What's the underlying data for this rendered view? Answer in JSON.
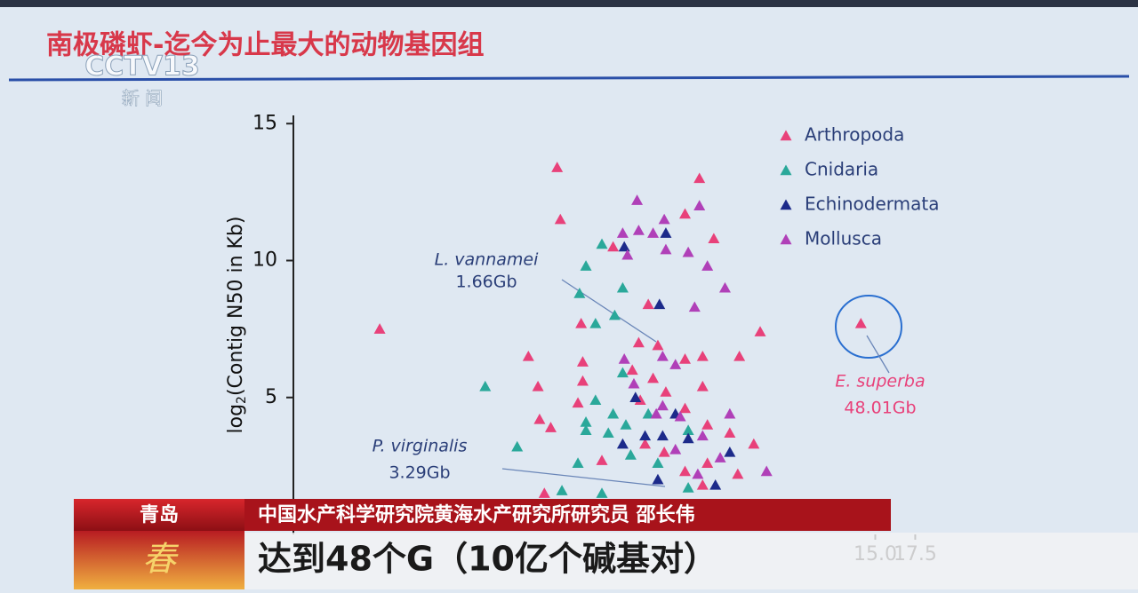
{
  "logo": {
    "brand": "CCTV13",
    "channel": "新 闻"
  },
  "slide": {
    "title": "南极磷虾-迄今为止最大的动物基因组"
  },
  "chart_data": {
    "type": "scatter",
    "y_label": {
      "base": "log",
      "sub": "2",
      "rest": "(Contig N50 in Kb)"
    },
    "ylim": [
      0,
      15.3
    ],
    "yticks": [
      5,
      10,
      15
    ],
    "xlim": [
      -21.4,
      19.2
    ],
    "xticks": [
      {
        "value": 15,
        "label": "15.0"
      },
      {
        "value": 17.5,
        "label": "17.5"
      }
    ],
    "annotations": [
      {
        "name": "L. vannamei",
        "size": "1.66Gb"
      },
      {
        "name": "P. virginalis",
        "size": "3.29Gb"
      },
      {
        "name": "E. superba",
        "size": "48.01Gb"
      }
    ],
    "series": [
      {
        "name": "Arthropoda",
        "color": "#e8417a",
        "x": [
          -4.9,
          -4.7,
          -16.0,
          4.0,
          3.1,
          4.9,
          -1.4,
          7.8,
          14.1,
          6.5,
          -6.7,
          -6.1,
          -3.3,
          -3.4,
          0.2,
          1.4,
          0.8,
          3.1,
          4.2,
          -3.3,
          -6.0,
          -5.3,
          -3.6,
          -0.2,
          1.1,
          1.9,
          4.2,
          3.1,
          4.5,
          5.9,
          7.4,
          -2.1,
          1.8,
          3.1,
          6.4,
          4.5,
          0.3,
          0.6,
          -5.7,
          4.2
        ],
        "values": [
          13.4,
          11.5,
          7.5,
          13.0,
          11.7,
          10.8,
          10.5,
          7.4,
          7.7,
          6.5,
          6.5,
          5.4,
          6.3,
          7.7,
          7.0,
          6.9,
          8.4,
          6.4,
          6.5,
          5.6,
          4.2,
          3.9,
          4.8,
          6.0,
          5.7,
          5.2,
          5.4,
          4.6,
          4.0,
          3.7,
          3.3,
          2.7,
          3.0,
          2.3,
          2.2,
          2.6,
          4.9,
          3.3,
          1.5,
          1.8
        ]
      },
      {
        "name": "Cnidaria",
        "color": "#2aa89a",
        "x": [
          -9.4,
          -2.1,
          -3.1,
          -0.8,
          -3.5,
          -1.3,
          -2.5,
          -7.4,
          -3.1,
          -2.5,
          -1.4,
          -0.8,
          -0.6,
          -1.7,
          -3.1,
          -0.3,
          -3.6,
          0.8,
          3.3,
          -4.6,
          -2.1,
          1.4,
          3.3
        ],
        "values": [
          5.4,
          10.6,
          9.8,
          9.0,
          8.8,
          8.0,
          7.7,
          3.2,
          4.1,
          4.9,
          4.4,
          5.9,
          4.0,
          3.7,
          3.8,
          2.9,
          2.6,
          4.4,
          3.8,
          1.6,
          1.5,
          2.6,
          1.7
        ]
      },
      {
        "name": "Echinodermata",
        "color": "#1c2a8a",
        "x": [
          -0.7,
          1.9,
          1.5,
          0.0,
          1.7,
          0.6,
          3.3,
          5.0,
          5.9,
          2.5,
          1.4,
          -0.8
        ],
        "values": [
          10.5,
          11.0,
          8.4,
          5.0,
          3.6,
          3.6,
          3.5,
          1.8,
          3.0,
          4.4,
          2.0,
          3.3
        ]
      },
      {
        "name": "Mollusca",
        "color": "#b040b8",
        "x": [
          0.1,
          1.8,
          4.0,
          -0.8,
          0.2,
          1.1,
          3.3,
          -0.5,
          1.9,
          4.5,
          5.6,
          3.7,
          1.7,
          2.5,
          -0.7,
          -0.1,
          1.7,
          2.8,
          5.9,
          4.2,
          2.5,
          1.3,
          8.2,
          5.3,
          3.9
        ],
        "values": [
          12.2,
          11.5,
          12.0,
          11.0,
          11.1,
          11.0,
          10.3,
          10.2,
          10.4,
          9.8,
          9.0,
          8.3,
          6.5,
          6.2,
          6.4,
          5.5,
          4.7,
          4.3,
          4.4,
          3.6,
          3.1,
          4.4,
          2.3,
          2.8,
          2.2
        ]
      }
    ]
  },
  "caption": {
    "location": "青岛",
    "speaker": "中国水产科学研究院黄海水产研究所研究员 邵长伟",
    "subtitle": "达到48个G（10亿个碱基对）",
    "badge": "春"
  }
}
